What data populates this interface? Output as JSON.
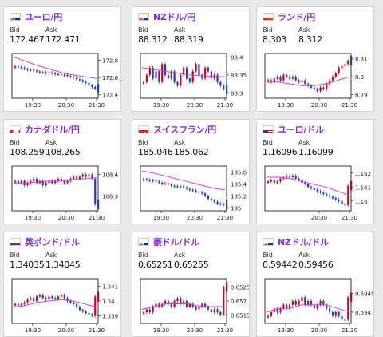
{
  "accent_color": "#8a2be2",
  "bid_label": "Bid",
  "ask_label": "Ask",
  "cards": [
    {
      "name": "ユーロ/円",
      "flag": "eu",
      "bid": "172.467",
      "ask": "172.471",
      "yticks": [
        "172.8",
        "172.6",
        "172.4"
      ],
      "ytick_values": [
        172.8,
        172.6,
        172.4
      ],
      "ylim": [
        172.36,
        172.88
      ],
      "xticks": [
        "19:30",
        "20:30",
        "21:30"
      ],
      "last_tick_red": false,
      "candles": [
        172.73,
        172.72,
        172.71,
        172.7,
        172.69,
        172.69,
        172.68,
        172.67,
        172.66,
        172.66,
        172.65,
        172.66,
        172.65,
        172.64,
        172.64,
        172.63,
        172.63,
        172.62,
        172.61,
        172.6,
        172.58,
        172.57,
        172.55,
        172.54,
        172.51,
        172.49,
        172.47
      ],
      "ma": [
        172.84,
        172.79,
        172.74,
        172.7,
        172.66,
        172.63,
        172.61,
        172.59
      ]
    },
    {
      "name": "NZドル/円",
      "flag": "nz",
      "bid": "88.312",
      "ask": "88.319",
      "yticks": [
        "88.4",
        "88.35",
        "88.3"
      ],
      "ytick_values": [
        88.4,
        88.35,
        88.3
      ],
      "ylim": [
        88.285,
        88.41
      ],
      "xticks": [
        "19:30",
        "20:30",
        "21:30"
      ],
      "last_tick_red": false,
      "candles": [
        88.33,
        88.35,
        88.37,
        88.34,
        88.36,
        88.33,
        88.38,
        88.35,
        88.34,
        88.36,
        88.33,
        88.32,
        88.35,
        88.37,
        88.34,
        88.33,
        88.36,
        88.38,
        88.35,
        88.34,
        88.37,
        88.36,
        88.34,
        88.35,
        88.33,
        88.32,
        88.31
      ],
      "ma": [
        88.37,
        88.365,
        88.36,
        88.355,
        88.35,
        88.348,
        88.346,
        88.345
      ]
    },
    {
      "name": "ランド/円",
      "flag": "za",
      "bid": "8.303",
      "ask": "8.312",
      "yticks": [
        "8.31",
        "8.3",
        "8.29"
      ],
      "ytick_values": [
        8.31,
        8.3,
        8.29
      ],
      "ylim": [
        8.288,
        8.313
      ],
      "xticks": [
        "19:30",
        "20:30",
        "21:30"
      ],
      "last_tick_red": false,
      "candles": [
        8.298,
        8.297,
        8.299,
        8.3,
        8.298,
        8.301,
        8.3,
        8.299,
        8.3,
        8.298,
        8.297,
        8.298,
        8.296,
        8.295,
        8.294,
        8.293,
        8.292,
        8.294,
        8.293,
        8.296,
        8.298,
        8.3,
        8.302,
        8.305,
        8.306,
        8.307,
        8.309
      ],
      "ma": [
        8.297,
        8.297,
        8.296,
        8.295,
        8.295,
        8.296,
        8.298,
        8.3
      ]
    },
    {
      "name": "カナダドル/円",
      "flag": "ca",
      "bid": "108.259",
      "ask": "108.265",
      "yticks": [
        "108.4",
        "108.3"
      ],
      "ytick_values": [
        108.4,
        108.3
      ],
      "ylim": [
        108.23,
        108.44
      ],
      "xticks": [
        "19:30",
        "20:30",
        "21:30"
      ],
      "last_tick_red": false,
      "candles": [
        108.37,
        108.36,
        108.37,
        108.35,
        108.36,
        108.37,
        108.38,
        108.36,
        108.37,
        108.35,
        108.36,
        108.37,
        108.36,
        108.37,
        108.38,
        108.37,
        108.36,
        108.37,
        108.38,
        108.39,
        108.38,
        108.39,
        108.4,
        108.39,
        108.4,
        108.38,
        108.26
      ],
      "ma": [
        108.36,
        108.36,
        108.365,
        108.37,
        108.37,
        108.375,
        108.38,
        108.385
      ]
    },
    {
      "name": "スイスフラン/円",
      "flag": "ch",
      "bid": "185.046",
      "ask": "185.062",
      "yticks": [
        "185.6",
        "185.4",
        "185.2",
        "185"
      ],
      "ytick_values": [
        185.6,
        185.4,
        185.2,
        185
      ],
      "ylim": [
        184.95,
        185.7
      ],
      "xticks": [
        "19:30",
        "20:30",
        "21:30"
      ],
      "last_tick_red": false,
      "candles": [
        185.48,
        185.47,
        185.45,
        185.46,
        185.44,
        185.42,
        185.4,
        185.41,
        185.39,
        185.37,
        185.36,
        185.35,
        185.36,
        185.34,
        185.32,
        185.3,
        185.29,
        185.27,
        185.26,
        185.24,
        185.2,
        185.15,
        185.12,
        185.1,
        185.07,
        185.06,
        185.05
      ],
      "ma": [
        185.62,
        185.58,
        185.53,
        185.48,
        185.43,
        185.38,
        185.33,
        185.3
      ]
    },
    {
      "name": "ユーロ/ドル",
      "flag": "us",
      "bid": "1.16096",
      "ask": "1.16099",
      "yticks": [
        "1.162",
        "1.161",
        "1.16"
      ],
      "ytick_values": [
        1.162,
        1.161,
        1.16
      ],
      "ylim": [
        1.1593,
        1.1625
      ],
      "xticks": [
        "20:30",
        "21:30"
      ],
      "last_tick_red": true,
      "candles": [
        1.1614,
        1.1615,
        1.1613,
        1.1614,
        1.1616,
        1.1617,
        1.1618,
        1.1617,
        1.1618,
        1.1616,
        1.1615,
        1.1613,
        1.1612,
        1.161,
        1.1609,
        1.1608,
        1.1607,
        1.1606,
        1.1605,
        1.1604,
        1.1603,
        1.1602,
        1.1601,
        1.16,
        1.1598,
        1.1597,
        1.1611
      ],
      "ma": [
        1.1617,
        1.1617,
        1.1616,
        1.1614,
        1.1612,
        1.161,
        1.1607,
        1.1604
      ]
    },
    {
      "name": "英ポンド/ドル",
      "flag": "us",
      "bid": "1.34035",
      "ask": "1.34045",
      "yticks": [
        "1.341",
        "1.34",
        "1.339"
      ],
      "ytick_values": [
        1.341,
        1.34,
        1.339
      ],
      "ylim": [
        1.3385,
        1.3415
      ],
      "xticks": [
        "19:30",
        "20:30",
        "21:30"
      ],
      "last_tick_red": true,
      "candles": [
        1.3398,
        1.3397,
        1.3398,
        1.3399,
        1.3401,
        1.3402,
        1.34,
        1.3403,
        1.3404,
        1.3402,
        1.3401,
        1.3403,
        1.3402,
        1.3401,
        1.3403,
        1.3404,
        1.3402,
        1.34,
        1.3399,
        1.3398,
        1.3396,
        1.3394,
        1.3393,
        1.3392,
        1.3391,
        1.339,
        1.3403
      ],
      "ma": [
        1.3396,
        1.3397,
        1.3399,
        1.34,
        1.3401,
        1.34,
        1.3398,
        1.3396
      ]
    },
    {
      "name": "豪ドル/ドル",
      "flag": "au",
      "bid": "0.65251",
      "ask": "0.65255",
      "yticks": [
        "0.6525",
        "0.652",
        "0.6515"
      ],
      "ytick_values": [
        0.6525,
        0.652,
        0.6515
      ],
      "ylim": [
        0.6512,
        0.6528
      ],
      "xticks": [
        "19:30",
        "20:30",
        "21:30"
      ],
      "last_tick_red": true,
      "candles": [
        0.6516,
        0.6517,
        0.6516,
        0.6518,
        0.6519,
        0.6518,
        0.6519,
        0.652,
        0.6519,
        0.6518,
        0.652,
        0.6521,
        0.6519,
        0.652,
        0.6518,
        0.6519,
        0.6518,
        0.6517,
        0.6518,
        0.6519,
        0.6518,
        0.6517,
        0.6516,
        0.6517,
        0.6516,
        0.6515,
        0.6525
      ],
      "ma": [
        0.6517,
        0.6518,
        0.6519,
        0.6519,
        0.6519,
        0.6518,
        0.6518,
        0.6518
      ]
    },
    {
      "name": "NZドル/ドル",
      "flag": "nz",
      "bid": "0.59442",
      "ask": "0.59456",
      "yticks": [
        "0.5945",
        "0.594"
      ],
      "ytick_values": [
        0.5945,
        0.594
      ],
      "ylim": [
        0.5937,
        0.5949
      ],
      "xticks": [
        "19:30",
        "20:30",
        "21:30"
      ],
      "last_tick_red": true,
      "candles": [
        0.5939,
        0.594,
        0.5941,
        0.594,
        0.5941,
        0.5942,
        0.5941,
        0.5942,
        0.5943,
        0.5942,
        0.5943,
        0.5944,
        0.5942,
        0.5943,
        0.5942,
        0.5941,
        0.5942,
        0.5943,
        0.5942,
        0.5941,
        0.594,
        0.5939,
        0.594,
        0.5939,
        0.5938,
        0.5938,
        0.5944
      ],
      "ma": [
        0.594,
        0.5941,
        0.5941,
        0.5942,
        0.5942,
        0.5942,
        0.5941,
        0.594
      ]
    }
  ]
}
